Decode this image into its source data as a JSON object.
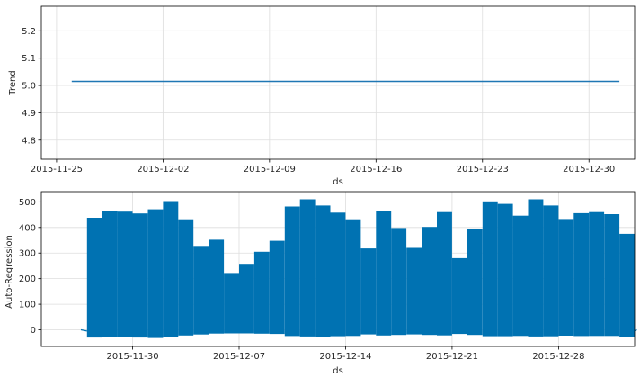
{
  "chart_data": [
    {
      "type": "line",
      "title": "",
      "xlabel": "ds",
      "ylabel": "Trend",
      "x_ticks": [
        "2015-11-25",
        "2015-12-02",
        "2015-12-09",
        "2015-12-16",
        "2015-12-23",
        "2015-12-30"
      ],
      "y_ticks": [
        "4.8",
        "4.9",
        "5.0",
        "5.1",
        "5.2"
      ],
      "xlim": [
        "2015-11-24",
        "2016-01-02"
      ],
      "ylim": [
        4.73,
        5.29
      ],
      "grid": true,
      "series": [
        {
          "x": [
            "2015-11-26",
            "2016-01-01"
          ],
          "values": [
            5.015,
            5.015
          ]
        }
      ],
      "color": "#1f77b4"
    },
    {
      "type": "area",
      "title": "",
      "xlabel": "ds",
      "ylabel": "Auto-Regression",
      "x_ticks": [
        "2015-11-30",
        "2015-12-07",
        "2015-12-14",
        "2015-12-21",
        "2015-12-28"
      ],
      "y_ticks": [
        "0",
        "100",
        "200",
        "300",
        "400",
        "500"
      ],
      "xlim": [
        "2015-11-24",
        "2016-01-02"
      ],
      "ylim": [
        -65,
        540
      ],
      "grid": true,
      "segments": [
        {
          "start": "2015-11-27",
          "end": "2015-11-28",
          "high": 438,
          "low": -30
        },
        {
          "start": "2015-11-28",
          "end": "2015-11-29",
          "high": 466,
          "low": -28
        },
        {
          "start": "2015-11-29",
          "end": "2015-11-30",
          "high": 462,
          "low": -28
        },
        {
          "start": "2015-11-30",
          "end": "2015-12-01",
          "high": 455,
          "low": -30
        },
        {
          "start": "2015-12-01",
          "end": "2015-12-02",
          "high": 471,
          "low": -32
        },
        {
          "start": "2015-12-02",
          "end": "2015-12-03",
          "high": 503,
          "low": -30
        },
        {
          "start": "2015-12-03",
          "end": "2015-12-04",
          "high": 432,
          "low": -22
        },
        {
          "start": "2015-12-04",
          "end": "2015-12-05",
          "high": 328,
          "low": -18
        },
        {
          "start": "2015-12-05",
          "end": "2015-12-06",
          "high": 352,
          "low": -15
        },
        {
          "start": "2015-12-06",
          "end": "2015-12-07",
          "high": 222,
          "low": -14
        },
        {
          "start": "2015-12-07",
          "end": "2015-12-08",
          "high": 258,
          "low": -14
        },
        {
          "start": "2015-12-08",
          "end": "2015-12-09",
          "high": 305,
          "low": -15
        },
        {
          "start": "2015-12-09",
          "end": "2015-12-10",
          "high": 348,
          "low": -16
        },
        {
          "start": "2015-12-10",
          "end": "2015-12-11",
          "high": 482,
          "low": -24
        },
        {
          "start": "2015-12-11",
          "end": "2015-12-12",
          "high": 510,
          "low": -26
        },
        {
          "start": "2015-12-12",
          "end": "2015-12-13",
          "high": 486,
          "low": -26
        },
        {
          "start": "2015-12-13",
          "end": "2015-12-14",
          "high": 458,
          "low": -25
        },
        {
          "start": "2015-12-14",
          "end": "2015-12-15",
          "high": 432,
          "low": -24
        },
        {
          "start": "2015-12-15",
          "end": "2015-12-16",
          "high": 318,
          "low": -18
        },
        {
          "start": "2015-12-16",
          "end": "2015-12-17",
          "high": 463,
          "low": -22
        },
        {
          "start": "2015-12-17",
          "end": "2015-12-18",
          "high": 398,
          "low": -20
        },
        {
          "start": "2015-12-18",
          "end": "2015-12-19",
          "high": 320,
          "low": -18
        },
        {
          "start": "2015-12-19",
          "end": "2015-12-20",
          "high": 402,
          "low": -20
        },
        {
          "start": "2015-12-20",
          "end": "2015-12-21",
          "high": 460,
          "low": -22
        },
        {
          "start": "2015-12-21",
          "end": "2015-12-22",
          "high": 280,
          "low": -16
        },
        {
          "start": "2015-12-22",
          "end": "2015-12-23",
          "high": 393,
          "low": -20
        },
        {
          "start": "2015-12-23",
          "end": "2015-12-24",
          "high": 502,
          "low": -25
        },
        {
          "start": "2015-12-24",
          "end": "2015-12-25",
          "high": 492,
          "low": -25
        },
        {
          "start": "2015-12-25",
          "end": "2015-12-26",
          "high": 446,
          "low": -24
        },
        {
          "start": "2015-12-26",
          "end": "2015-12-27",
          "high": 510,
          "low": -26
        },
        {
          "start": "2015-12-27",
          "end": "2015-12-28",
          "high": 486,
          "low": -25
        },
        {
          "start": "2015-12-28",
          "end": "2015-12-29",
          "high": 433,
          "low": -23
        },
        {
          "start": "2015-12-29",
          "end": "2015-12-30",
          "high": 456,
          "low": -24
        },
        {
          "start": "2015-12-30",
          "end": "2015-12-31",
          "high": 460,
          "low": -24
        },
        {
          "start": "2015-12-31",
          "end": "2016-01-01",
          "high": 452,
          "low": -24
        },
        {
          "start": "2016-01-01",
          "end": "2016-01-02",
          "high": 375,
          "low": -28
        }
      ],
      "color": "#0072b2"
    }
  ]
}
